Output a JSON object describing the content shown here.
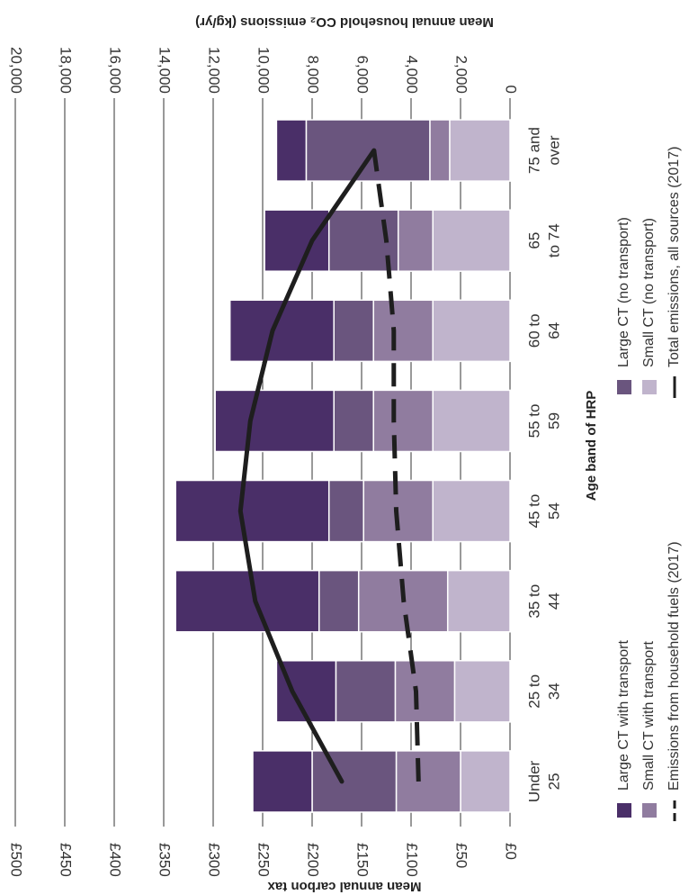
{
  "chart_data": {
    "type": "bar",
    "orientation": "horizontal-stacked-rotated",
    "xlabel": "Age band of HRP",
    "ylabel": "Mean annual carbon tax",
    "ylabel_right": "Mean annual household CO₂ emissions (kg/yr)",
    "categories": [
      [
        "Under",
        "25"
      ],
      [
        "25 to",
        "34"
      ],
      [
        "35 to",
        "44"
      ],
      [
        "45 to",
        "54"
      ],
      [
        "55 to",
        "59"
      ],
      [
        "60 to",
        "64"
      ],
      [
        "65",
        "to 74"
      ],
      [
        "75 and",
        "over"
      ]
    ],
    "tax_ticks": [
      "£0",
      "£50",
      "£100",
      "£150",
      "£200",
      "£250",
      "£300",
      "£350",
      "£400",
      "£450",
      "£500"
    ],
    "emission_ticks": [
      "0",
      "2,000",
      "4,000",
      "6,000",
      "8,000",
      "10,000",
      "12,000",
      "14,000",
      "16,000",
      "18,000",
      "20,000"
    ],
    "ylim": [
      0,
      500
    ],
    "y2lim": [
      0,
      20000
    ],
    "bar_series": [
      {
        "name": "Small CT (no transport)",
        "color": "#c0b4cc",
        "values": [
          50,
          56,
          63,
          78,
          78,
          78,
          78,
          61
        ]
      },
      {
        "name": "Small CT with transport",
        "color": "#907c9f",
        "values": [
          65,
          60,
          90,
          70,
          60,
          60,
          35,
          20
        ]
      },
      {
        "name": "Large CT (no transport)",
        "color": "#6a557e",
        "values": [
          85,
          60,
          40,
          35,
          40,
          40,
          70,
          125
        ]
      },
      {
        "name": "Large CT with transport",
        "color": "#4a2f68",
        "values": [
          60,
          60,
          145,
          155,
          120,
          105,
          65,
          30
        ]
      }
    ],
    "line_series": [
      {
        "name": "Total emissions, all sources (2017)",
        "style": "solid",
        "values": [
          6800,
          8800,
          10300,
          10900,
          10500,
          9600,
          8000,
          5500
        ]
      },
      {
        "name": "Emissions from household fuels (2017)",
        "style": "dashed",
        "values": [
          3700,
          3800,
          4300,
          4600,
          4700,
          4700,
          5000,
          5500
        ]
      }
    ],
    "legend": [
      {
        "label": "Large CT with transport",
        "kind": "swatch",
        "color": "#4a2f68"
      },
      {
        "label": "Small CT with transport",
        "kind": "swatch",
        "color": "#907c9f"
      },
      {
        "label": "Emissions from household fuels (2017)",
        "kind": "dashed"
      },
      {
        "label": "Large CT (no transport)",
        "kind": "swatch",
        "color": "#6a557e"
      },
      {
        "label": "Small CT (no transport)",
        "kind": "swatch",
        "color": "#c0b4cc"
      },
      {
        "label": "Total emissions, all sources (2017)",
        "kind": "solid"
      }
    ],
    "grid": true,
    "legend_position": "bottom"
  }
}
